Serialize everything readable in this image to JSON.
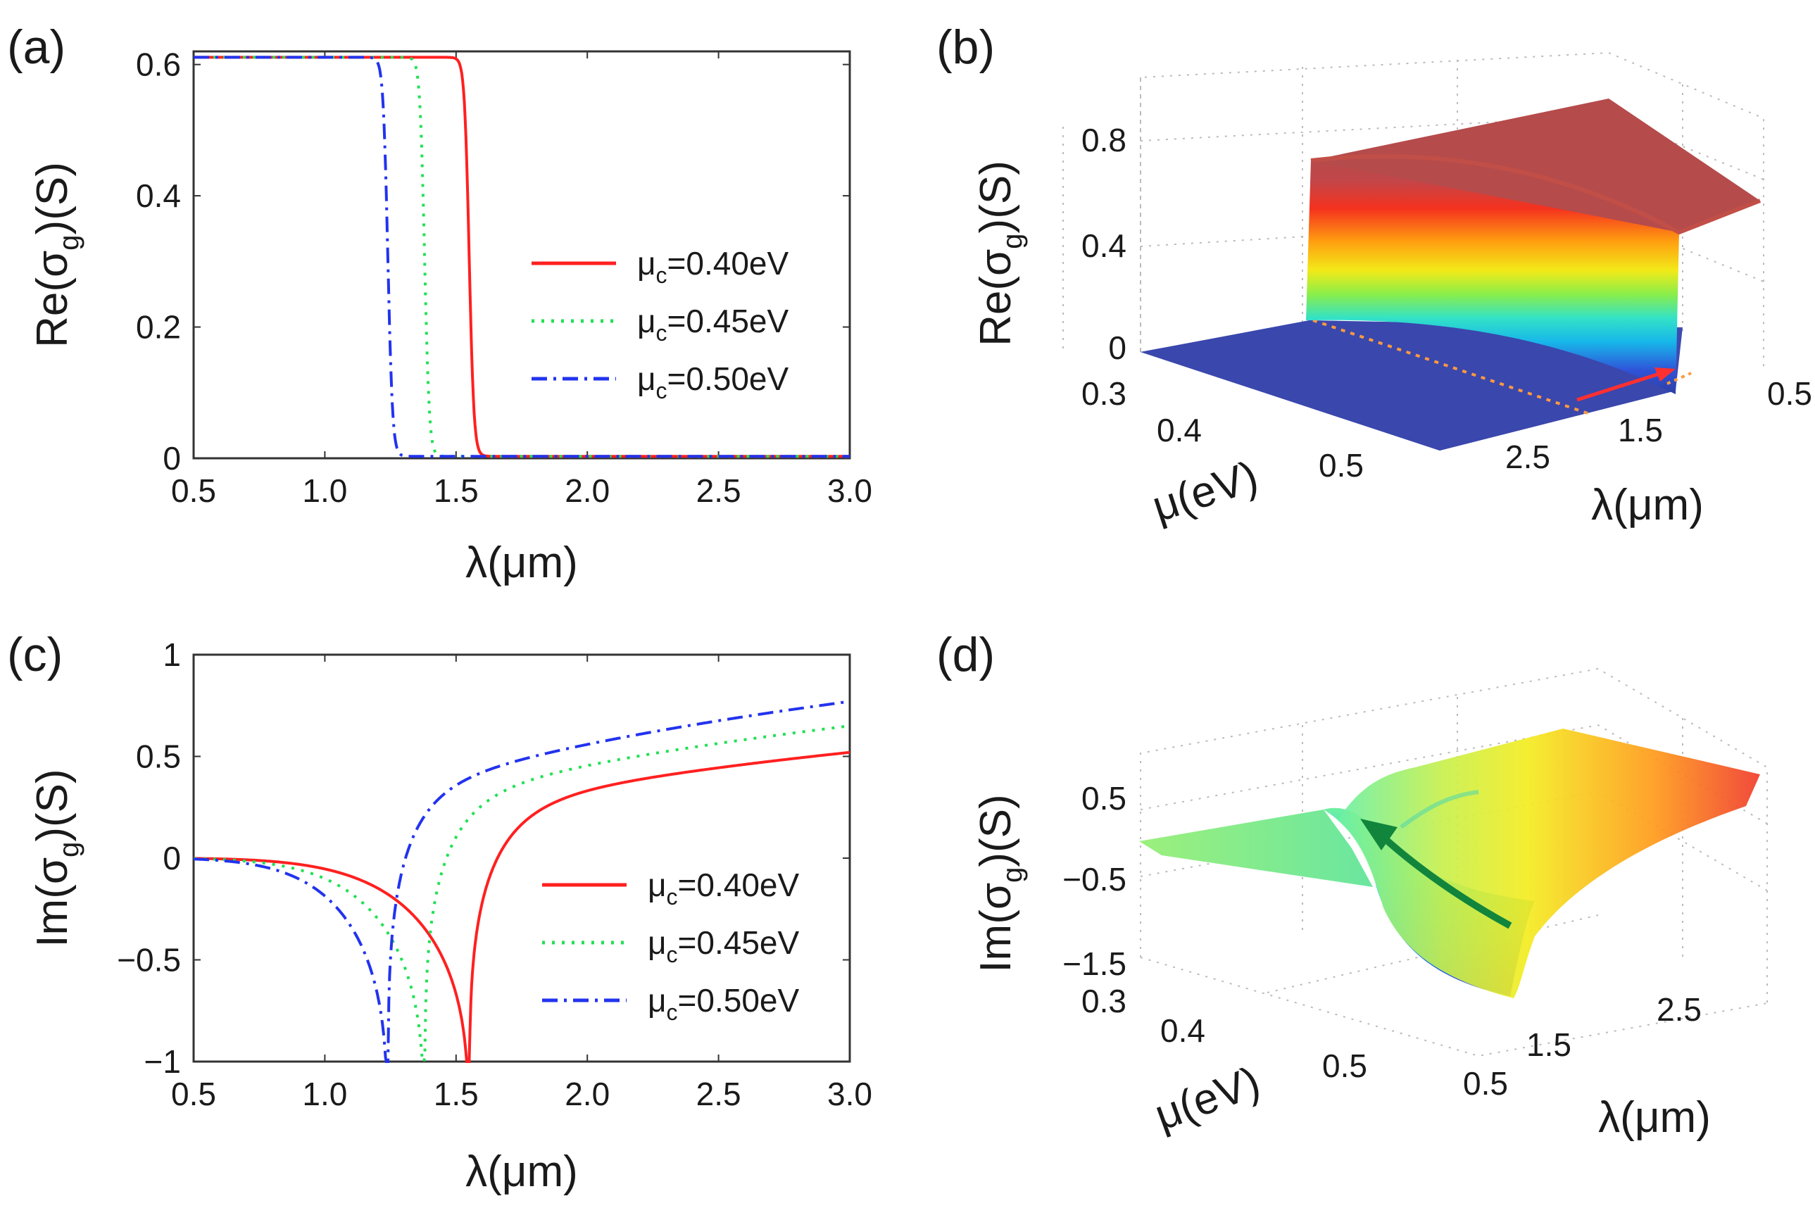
{
  "panels": {
    "a": "(a)",
    "b": "(b)",
    "c": "(c)",
    "d": "(d)"
  },
  "colors": {
    "mu040": "#ff2020",
    "mu045": "#22e055",
    "mu050": "#2233ee"
  },
  "chart_data": [
    {
      "id": "a",
      "type": "line",
      "title": "",
      "xlabel": "λ(μm)",
      "ylabel": "Re(σg)(S)",
      "ylabel_main": "Re(σ",
      "ylabel_sub": "g",
      "ylabel_tail": ")(S)",
      "xlim": [
        0.5,
        3.0
      ],
      "ylim": [
        0,
        0.62
      ],
      "xticks": [
        "0.5",
        "1.0",
        "1.5",
        "2.0",
        "2.5",
        "3.0"
      ],
      "yticks": [
        "0",
        "0.2",
        "0.4",
        "0.6"
      ],
      "legend": {
        "placement": "center-right",
        "entries": [
          {
            "prefix": "μ",
            "sub": "c",
            "text": "=0.40eV"
          },
          {
            "prefix": "μ",
            "sub": "c",
            "text": "=0.45eV"
          },
          {
            "prefix": "μ",
            "sub": "c",
            "text": "=0.50eV"
          }
        ]
      },
      "series": [
        {
          "name": "μc=0.40eV",
          "style": "solid",
          "color": "#ff2020",
          "edge": 1.55
        },
        {
          "name": "μc=0.45eV",
          "style": "dotted",
          "color": "#22e055",
          "edge": 1.38
        },
        {
          "name": "μc=0.50eV",
          "style": "dashdot",
          "color": "#2233ee",
          "edge": 1.24
        }
      ],
      "plateau": 0.608
    },
    {
      "id": "b",
      "type": "surface",
      "title": "",
      "zlabel": "Re(σg)(S)",
      "zlabel_main": "Re(σ",
      "zlabel_sub": "g",
      "zlabel_tail": ")(S)",
      "xlabel": "μ(eV)",
      "ylabel": "λ(μm)",
      "zticks": [
        "0",
        "0.4",
        "0.8"
      ],
      "mu_ticks": [
        "0.3",
        "0.4",
        "0.5"
      ],
      "lambda_ticks": [
        "2.5",
        "1.5",
        "0.5"
      ]
    },
    {
      "id": "c",
      "type": "line",
      "title": "",
      "xlabel": "λ(μm)",
      "ylabel": "Im(σg)(S)",
      "ylabel_main": "Im(σ",
      "ylabel_sub": "g",
      "ylabel_tail": ")(S)",
      "xlim": [
        0.5,
        3.0
      ],
      "ylim": [
        -1,
        1
      ],
      "xticks": [
        "0.5",
        "1.0",
        "1.5",
        "2.0",
        "2.5",
        "3.0"
      ],
      "yticks": [
        "−1",
        "−0.5",
        "0",
        "0.5",
        "1"
      ],
      "legend": {
        "placement": "lower-right",
        "entries": [
          {
            "prefix": "μ",
            "sub": "c",
            "text": "=0.40eV"
          },
          {
            "prefix": "μ",
            "sub": "c",
            "text": "=0.45eV"
          },
          {
            "prefix": "μ",
            "sub": "c",
            "text": "=0.50eV"
          }
        ]
      },
      "series": [
        {
          "name": "μc=0.40eV",
          "style": "solid",
          "color": "#ff2020",
          "dip": 1.55,
          "end": 0.52
        },
        {
          "name": "μc=0.45eV",
          "style": "dotted",
          "color": "#22e055",
          "dip": 1.38,
          "end": 0.65
        },
        {
          "name": "μc=0.50eV",
          "style": "dashdot",
          "color": "#2233ee",
          "dip": 1.24,
          "end": 0.77
        }
      ]
    },
    {
      "id": "d",
      "type": "surface",
      "title": "",
      "zlabel": "Im(σg)(S)",
      "zlabel_main": "Im(σ",
      "zlabel_sub": "g",
      "zlabel_tail": ")(S)",
      "xlabel": "μ(eV)",
      "ylabel": "λ(μm)",
      "zticks": [
        "0.5",
        "−0.5",
        "−1.5"
      ],
      "mu_ticks": [
        "0.3",
        "0.4",
        "0.5"
      ],
      "lambda_ticks": [
        "0.5",
        "1.5",
        "2.5"
      ]
    }
  ]
}
